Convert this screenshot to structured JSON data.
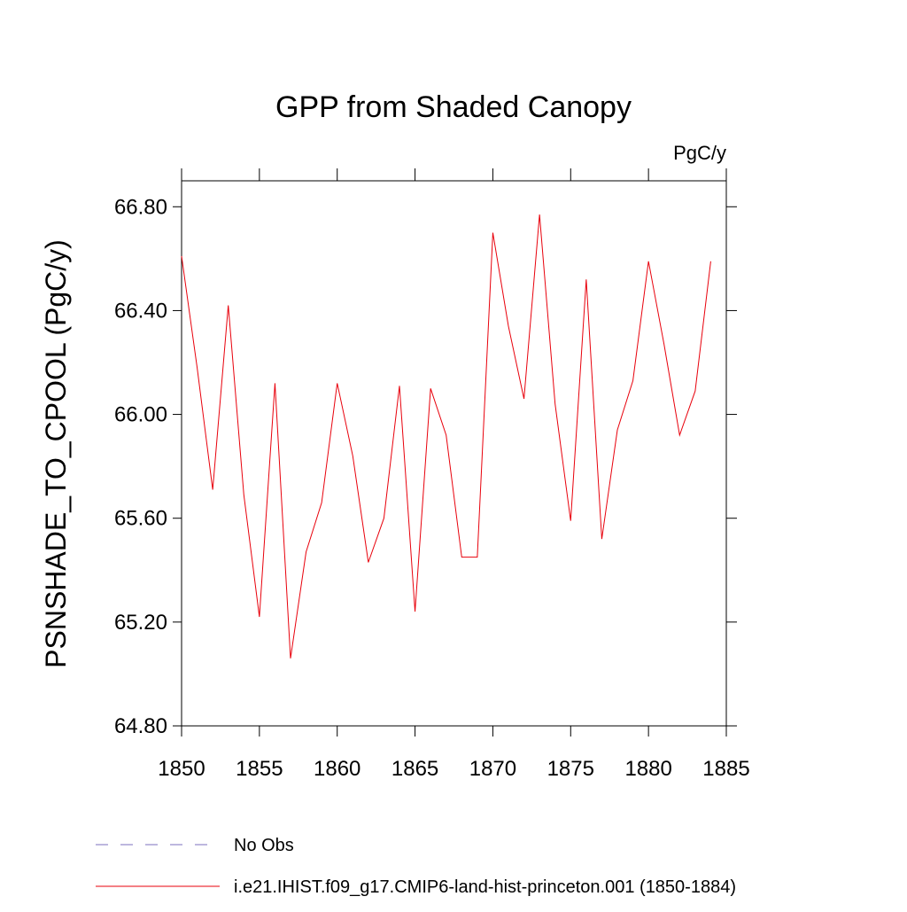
{
  "chart_data": {
    "type": "line",
    "title": "GPP from Shaded Canopy",
    "units": "PgC/y",
    "y_label": "PSNSHADE_TO_CPOOL  (PgC/y)",
    "x": [
      1850,
      1851,
      1852,
      1853,
      1854,
      1855,
      1856,
      1857,
      1858,
      1859,
      1860,
      1861,
      1862,
      1863,
      1864,
      1865,
      1866,
      1867,
      1868,
      1869,
      1870,
      1871,
      1872,
      1873,
      1874,
      1875,
      1876,
      1877,
      1878,
      1879,
      1880,
      1881,
      1882,
      1883,
      1884
    ],
    "series": [
      {
        "name": "i.e21.IHIST.f09_g17.CMIP6-land-hist-princeton.001 (1850-1884)",
        "color": "#e8000b",
        "values": [
          66.61,
          66.18,
          65.71,
          66.42,
          65.69,
          65.22,
          66.12,
          65.06,
          65.47,
          65.66,
          66.12,
          65.84,
          65.43,
          65.6,
          66.11,
          65.24,
          66.1,
          65.92,
          65.45,
          65.45,
          66.7,
          66.34,
          66.06,
          66.77,
          66.04,
          65.59,
          66.52,
          65.52,
          65.94,
          66.13,
          66.59,
          66.27,
          65.92,
          66.09,
          66.59
        ]
      }
    ],
    "reference": {
      "name": "No Obs",
      "color": "#7b6fbf",
      "dashed": true
    },
    "xlim": [
      1850,
      1885
    ],
    "xticks": [
      1850,
      1855,
      1860,
      1865,
      1870,
      1875,
      1880,
      1885
    ],
    "ylim": [
      64.8,
      66.9
    ],
    "yticks": [
      {
        "value": 64.8,
        "label": "64.80"
      },
      {
        "value": 65.2,
        "label": "65.20"
      },
      {
        "value": 65.6,
        "label": "65.60"
      },
      {
        "value": 66.0,
        "label": "66.00"
      },
      {
        "value": 66.4,
        "label": "66.40"
      },
      {
        "value": 66.8,
        "label": "66.80"
      }
    ]
  }
}
